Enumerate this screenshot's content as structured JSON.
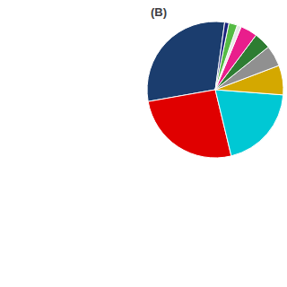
{
  "chart_data": {
    "type": "pie",
    "title": "(B)",
    "values": [
      30,
      26,
      20,
      7,
      5,
      4,
      4,
      1,
      2,
      1
    ],
    "colors": [
      "#1b3d6e",
      "#e00000",
      "#00c8d4",
      "#d4a800",
      "#909090",
      "#2e7d32",
      "#e91e8c",
      "#e8e8e8",
      "#55bb44",
      "#1a237e"
    ]
  }
}
